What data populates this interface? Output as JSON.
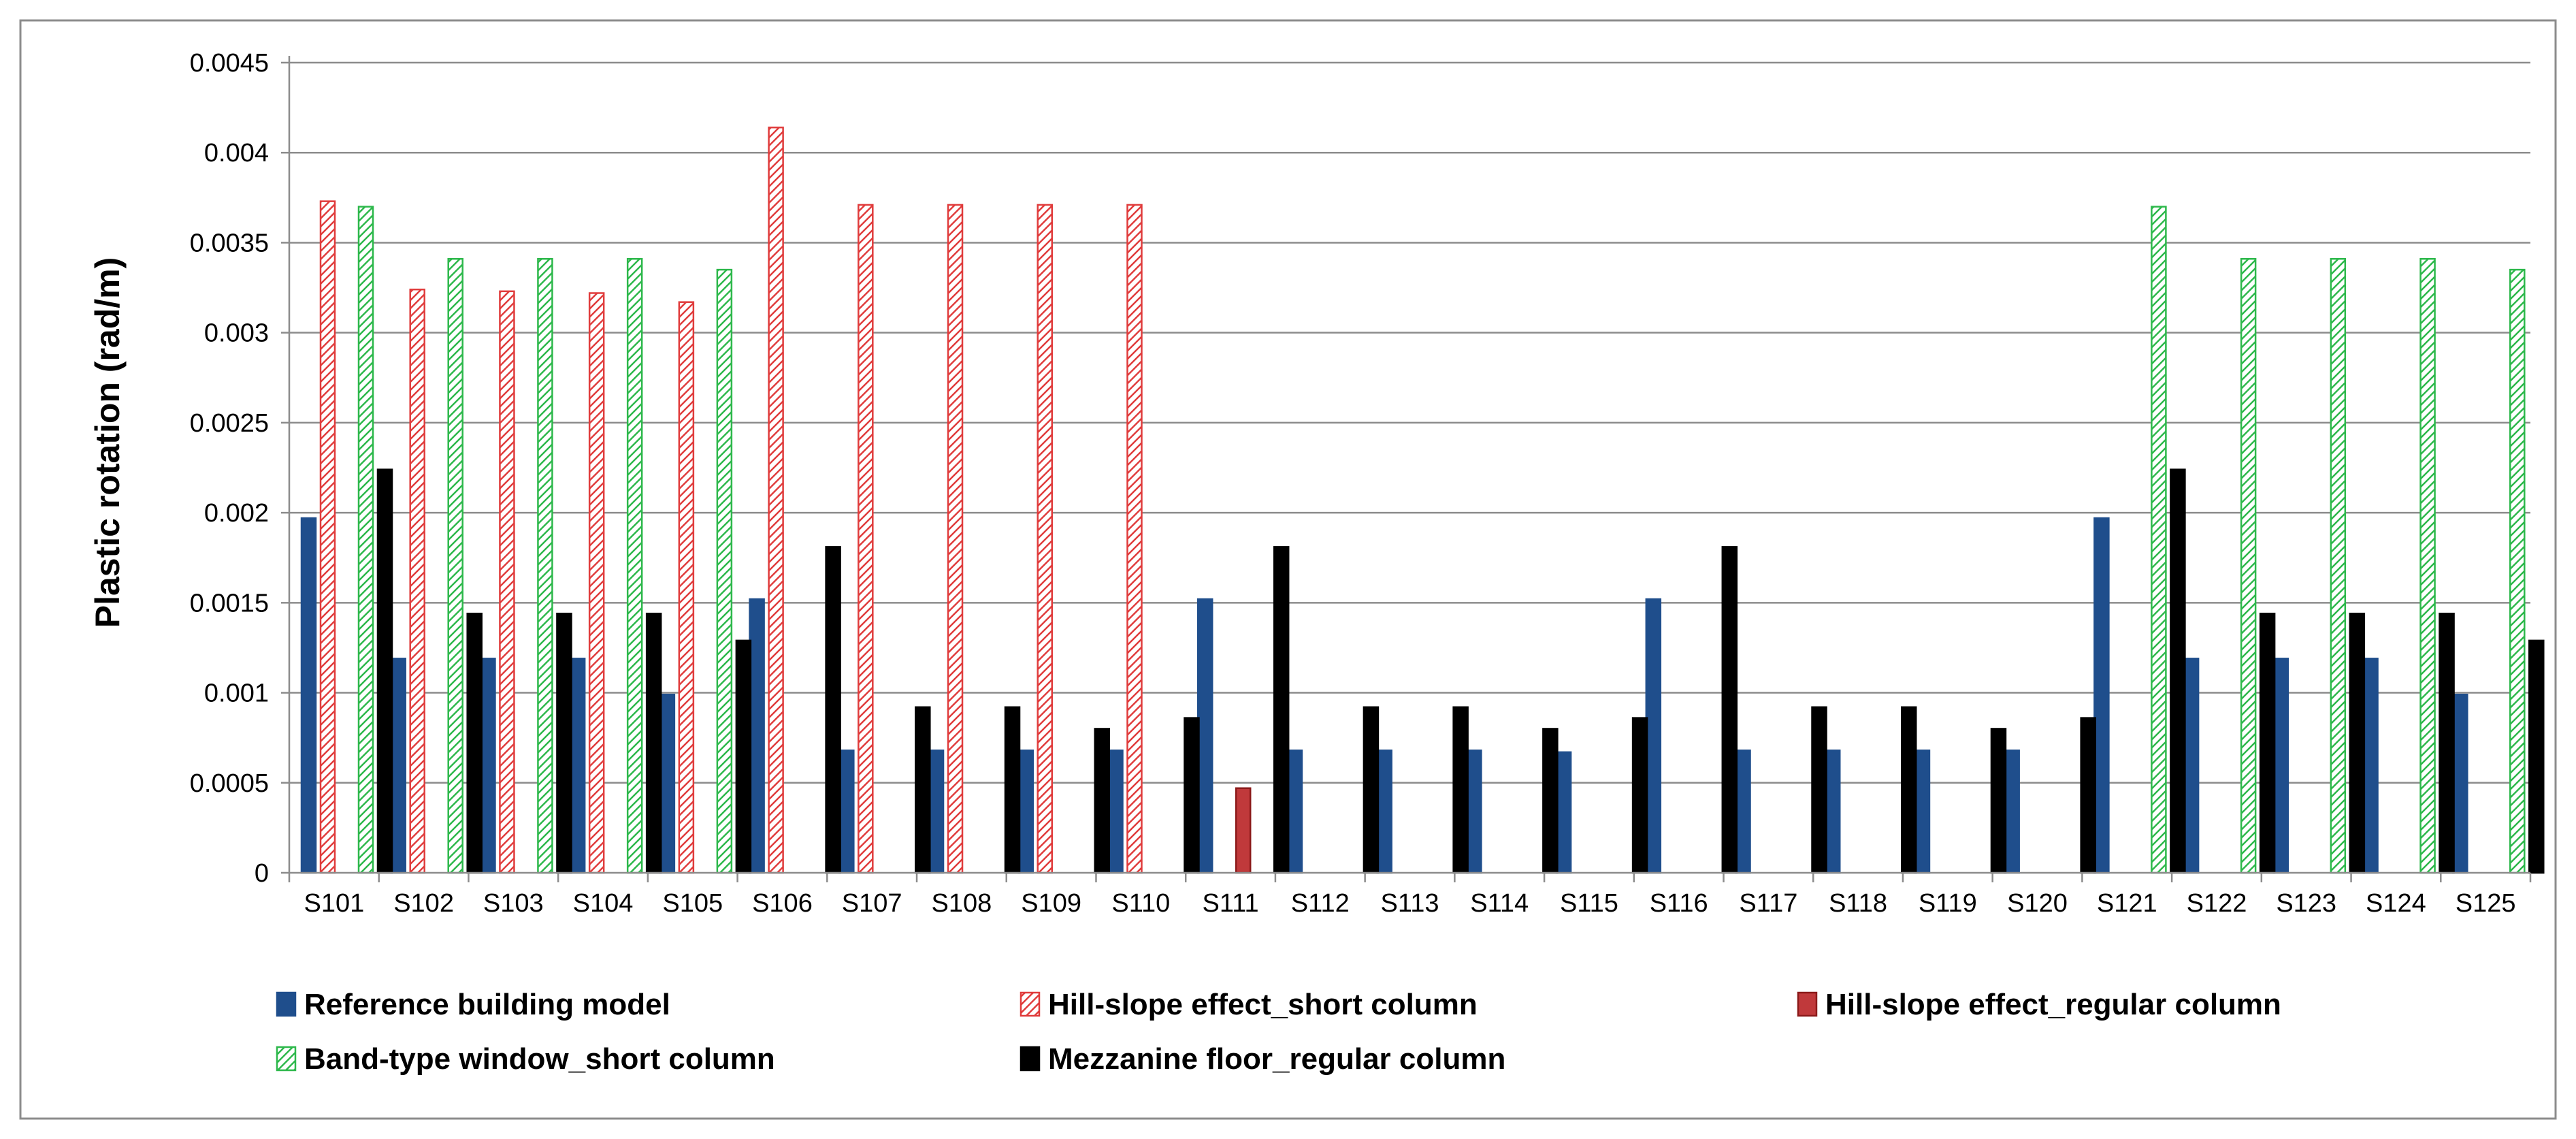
{
  "chart_data": {
    "type": "bar",
    "title": "",
    "xlabel": "",
    "ylabel": "Plastic rotation (rad/m)",
    "ylim": [
      0,
      0.0045
    ],
    "yticks": [
      "0",
      "0.0005",
      "0.001",
      "0.0015",
      "0.002",
      "0.0025",
      "0.003",
      "0.0035",
      "0.004",
      "0.0045"
    ],
    "grid": true,
    "legend_position": "bottom",
    "categories": [
      "S101",
      "S102",
      "S103",
      "S104",
      "S105",
      "S106",
      "S107",
      "S108",
      "S109",
      "S110",
      "S111",
      "S112",
      "S113",
      "S114",
      "S115",
      "S116",
      "S117",
      "S118",
      "S119",
      "S120",
      "S121",
      "S122",
      "S123",
      "S124",
      "S125"
    ],
    "series": [
      {
        "name": "Reference building model",
        "style": "solid",
        "color": "#1F4E8C",
        "values": [
          0.00197,
          0.00119,
          0.00119,
          0.00119,
          0.00099,
          0.00152,
          0.00068,
          0.00068,
          0.00068,
          0.00068,
          0.00152,
          0.00068,
          0.00068,
          0.00068,
          0.00067,
          0.00152,
          0.00068,
          0.00068,
          0.00068,
          0.00068,
          0.00197,
          0.00119,
          0.00119,
          0.00119,
          0.00099
        ]
      },
      {
        "name": "Hill-slope effect_short column",
        "style": "hatched",
        "color": "#E03C3C",
        "values": [
          0.00373,
          0.00324,
          0.00323,
          0.00322,
          0.00317,
          0.00414,
          0.00371,
          0.00371,
          0.00371,
          0.00371,
          0,
          0,
          0,
          0,
          0,
          0,
          0,
          0,
          0,
          0,
          0,
          0,
          0,
          0,
          0
        ]
      },
      {
        "name": "Hill-slope effect_regular column",
        "style": "solid",
        "color": "#C0393B",
        "values": [
          0,
          0,
          0,
          0,
          0,
          0,
          0,
          0,
          0,
          0,
          0.00047,
          0,
          0,
          0,
          0,
          0,
          0,
          0,
          0,
          0,
          0,
          0,
          0,
          0,
          0
        ]
      },
      {
        "name": "Band-type window_short column",
        "style": "hatched",
        "color": "#2DB84B",
        "values": [
          0.0037,
          0.00341,
          0.00341,
          0.00341,
          0.00335,
          0,
          0,
          0,
          0,
          0,
          0,
          0,
          0,
          0,
          0,
          0,
          0,
          0,
          0,
          0,
          0.0037,
          0.00341,
          0.00341,
          0.00341,
          0.00335
        ]
      },
      {
        "name": "Mezzanine floor_regular column",
        "style": "solid",
        "color": "#000000",
        "values": [
          0.00224,
          0.00144,
          0.00144,
          0.00144,
          0.00129,
          0.00181,
          0.00092,
          0.00092,
          0.0008,
          0.00086,
          0.00181,
          0.00092,
          0.00092,
          0.0008,
          0.00086,
          0.00181,
          0.00092,
          0.00092,
          0.0008,
          0.00086,
          0.00224,
          0.00144,
          0.00144,
          0.00144,
          0.00129
        ]
      }
    ]
  }
}
